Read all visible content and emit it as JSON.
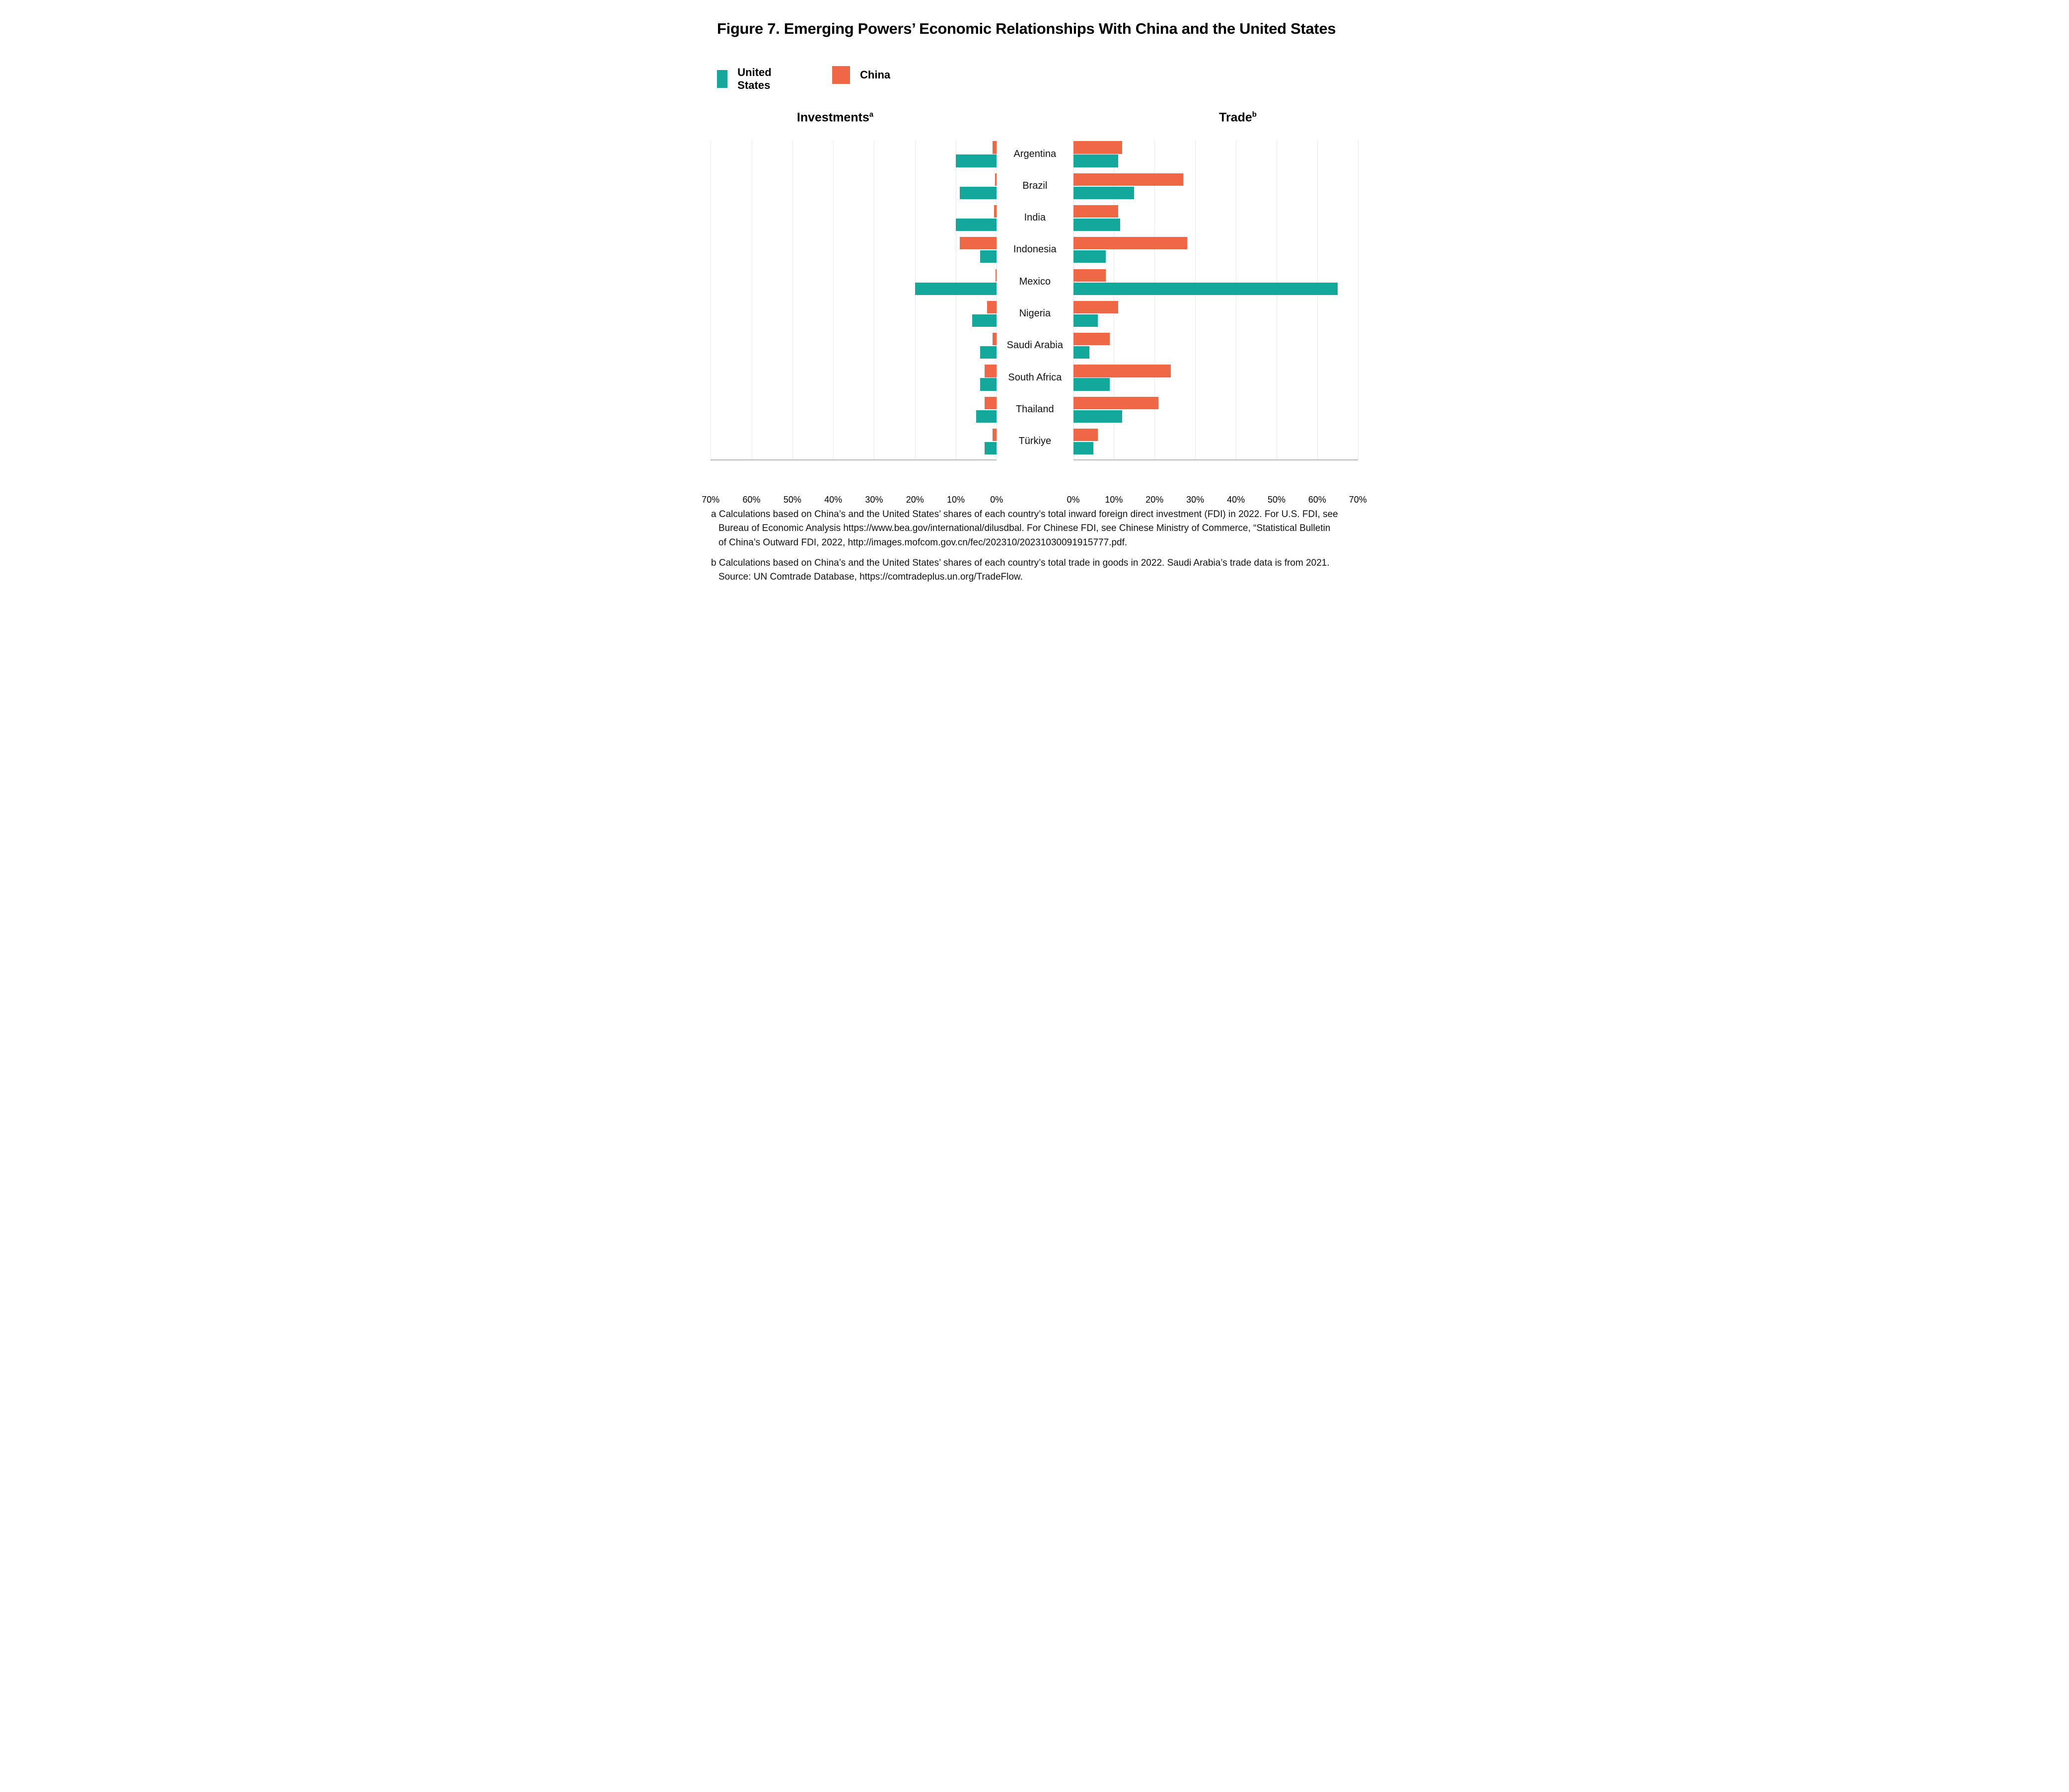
{
  "title": "Figure 7. Emerging Powers’ Economic Relationships With China and the United States",
  "legend": {
    "us_label": "United States",
    "cn_label": "China",
    "us_color": "#14A79B",
    "cn_color": "#EF6747"
  },
  "panels": {
    "left": {
      "header": "Investments",
      "sup": "a"
    },
    "right": {
      "header": "Trade",
      "sup": "b"
    }
  },
  "axis": {
    "left_ticks": [
      "70%",
      "60%",
      "50%",
      "40%",
      "30%",
      "20%",
      "10%",
      "0%"
    ],
    "right_ticks": [
      "0%",
      "10%",
      "20%",
      "30%",
      "40%",
      "50%",
      "60%",
      "70%"
    ]
  },
  "chart_data": {
    "type": "bar",
    "orientation": "horizontal-diverging",
    "unit": "percent share",
    "title": "Emerging Powers’ Economic Relationships With China and the United States",
    "categories": [
      "Argentina",
      "Brazil",
      "India",
      "Indonesia",
      "Mexico",
      "Nigeria",
      "Saudi Arabia",
      "South Africa",
      "Thailand",
      "Türkiye"
    ],
    "series": [
      {
        "name": "China",
        "panel": "Investments",
        "values": [
          1,
          0.4,
          0.7,
          9,
          0.3,
          2.3,
          1,
          3,
          3,
          1
        ]
      },
      {
        "name": "United States",
        "panel": "Investments",
        "values": [
          10,
          9,
          10,
          4,
          20,
          6,
          4,
          4,
          5,
          3
        ]
      },
      {
        "name": "China",
        "panel": "Trade",
        "values": [
          12,
          27,
          11,
          28,
          8,
          11,
          9,
          24,
          21,
          6
        ]
      },
      {
        "name": "United States",
        "panel": "Trade",
        "values": [
          11,
          15,
          11.5,
          8,
          65,
          6,
          4,
          9,
          12,
          5
        ]
      }
    ],
    "xlim_left": [
      70,
      0
    ],
    "xlim_right": [
      0,
      70
    ],
    "grid": true,
    "legend_position": "top-left",
    "colors": {
      "united_states": "#14A79B",
      "china": "#EF6747"
    }
  },
  "footnotes": {
    "a": "a Calculations based on China’s and the United States’ shares of each country’s total inward foreign direct investment (FDI) in 2022. For U.S. FDI, see\nBureau of Economic Analysis https://www.bea.gov/international/dilusdbal. For Chinese FDI, see Chinese Ministry of Commerce, “Statistical Bulletin\nof China’s Outward FDI, 2022, http://images.mofcom.gov.cn/fec/202310/20231030091915777.pdf.",
    "b": "b Calculations based on China’s and the United States’ shares of each country’s total trade in goods in 2022. Saudi Arabia’s trade data is from 2021.\nSource: UN Comtrade Database, https://comtradeplus.un.org/TradeFlow."
  }
}
